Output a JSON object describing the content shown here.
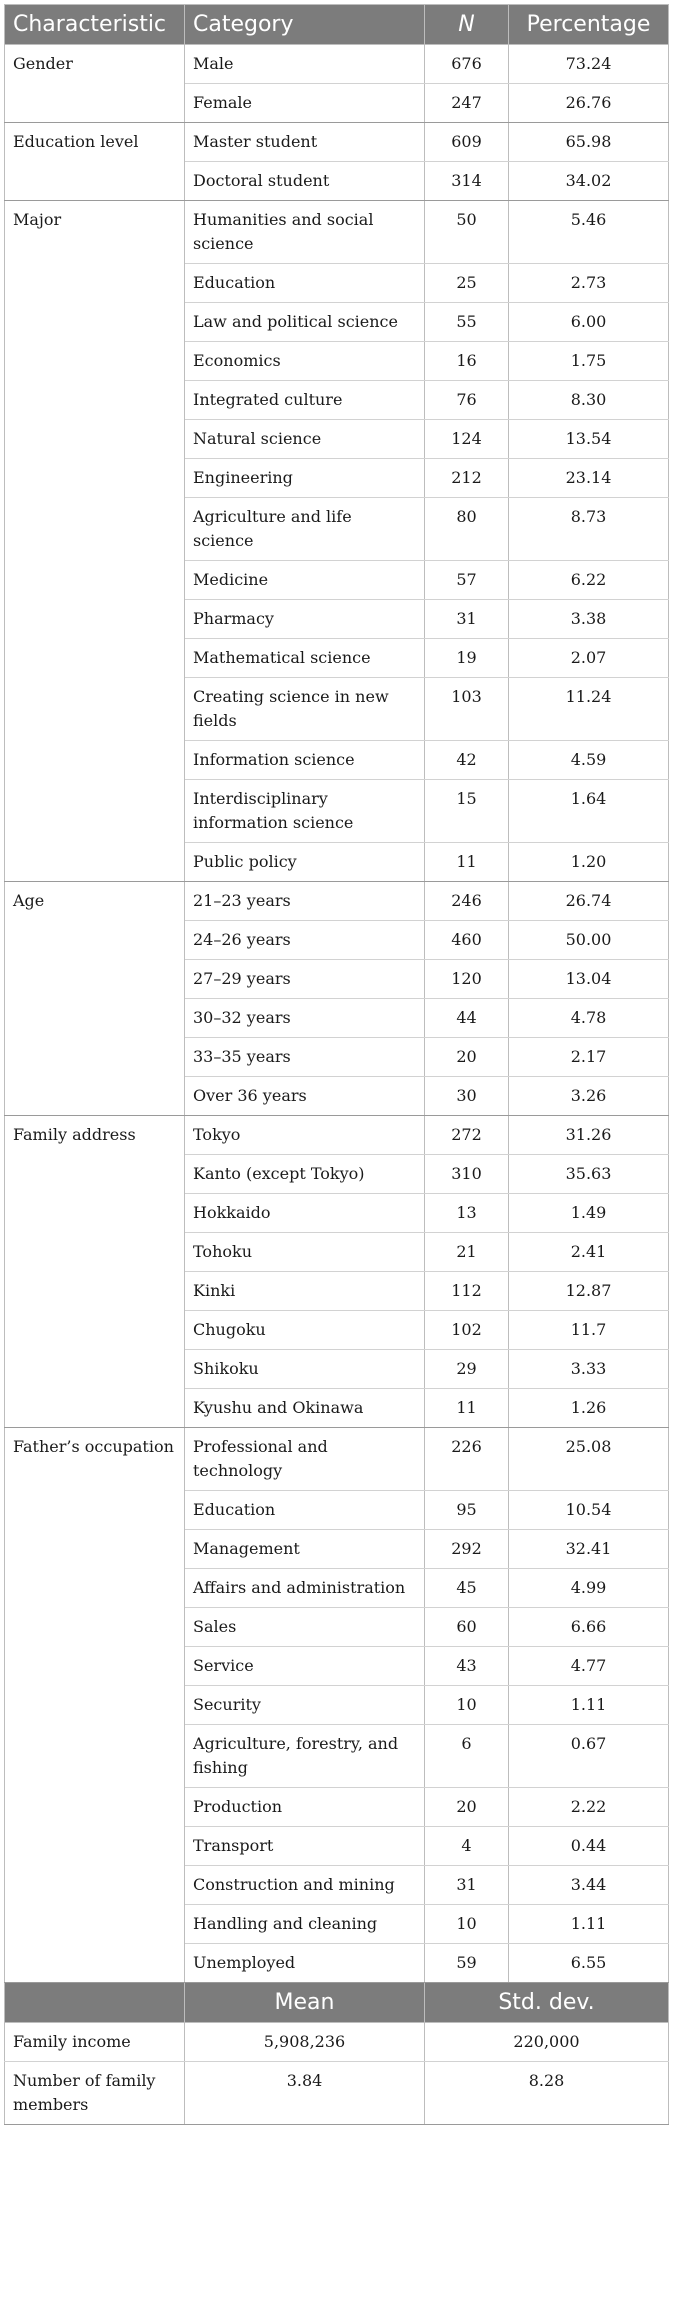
{
  "header": {
    "characteristic": "Characteristic",
    "category": "Category",
    "n": "N",
    "percentage": "Percentage"
  },
  "groups": [
    {
      "name": "Gender",
      "rows": [
        {
          "category": "Male",
          "n": "676",
          "pct": "73.24"
        },
        {
          "category": "Female",
          "n": "247",
          "pct": "26.76"
        }
      ]
    },
    {
      "name": "Education level",
      "rows": [
        {
          "category": "Master student",
          "n": "609",
          "pct": "65.98"
        },
        {
          "category": "Doctoral student",
          "n": "314",
          "pct": "34.02"
        }
      ]
    },
    {
      "name": "Major",
      "rows": [
        {
          "category": "Humanities and social science",
          "n": "50",
          "pct": "5.46"
        },
        {
          "category": "Education",
          "n": "25",
          "pct": "2.73"
        },
        {
          "category": "Law and political science",
          "n": "55",
          "pct": "6.00"
        },
        {
          "category": "Economics",
          "n": "16",
          "pct": "1.75"
        },
        {
          "category": "Integrated culture",
          "n": "76",
          "pct": "8.30"
        },
        {
          "category": "Natural science",
          "n": "124",
          "pct": "13.54"
        },
        {
          "category": "Engineering",
          "n": "212",
          "pct": "23.14"
        },
        {
          "category": "Agriculture and life science",
          "n": "80",
          "pct": "8.73"
        },
        {
          "category": "Medicine",
          "n": "57",
          "pct": "6.22"
        },
        {
          "category": "Pharmacy",
          "n": "31",
          "pct": "3.38"
        },
        {
          "category": "Mathematical science",
          "n": "19",
          "pct": "2.07"
        },
        {
          "category": "Creating science in new fields",
          "n": "103",
          "pct": "11.24"
        },
        {
          "category": "Information science",
          "n": "42",
          "pct": "4.59"
        },
        {
          "category": "Interdisciplinary information science",
          "n": "15",
          "pct": "1.64"
        },
        {
          "category": "Public policy",
          "n": "11",
          "pct": "1.20"
        }
      ]
    },
    {
      "name": "Age",
      "rows": [
        {
          "category": "21–23 years",
          "n": "246",
          "pct": "26.74"
        },
        {
          "category": "24–26 years",
          "n": "460",
          "pct": "50.00"
        },
        {
          "category": "27–29 years",
          "n": "120",
          "pct": "13.04"
        },
        {
          "category": "30–32 years",
          "n": "44",
          "pct": "4.78"
        },
        {
          "category": "33–35 years",
          "n": "20",
          "pct": "2.17"
        },
        {
          "category": "Over 36 years",
          "n": "30",
          "pct": "3.26"
        }
      ]
    },
    {
      "name": "Family address",
      "rows": [
        {
          "category": "Tokyo",
          "n": "272",
          "pct": "31.26"
        },
        {
          "category": "Kanto (except Tokyo)",
          "n": "310",
          "pct": "35.63"
        },
        {
          "category": "Hokkaido",
          "n": "13",
          "pct": "1.49"
        },
        {
          "category": "Tohoku",
          "n": "21",
          "pct": "2.41"
        },
        {
          "category": "Kinki",
          "n": "112",
          "pct": "12.87"
        },
        {
          "category": "Chugoku",
          "n": "102",
          "pct": "11.7"
        },
        {
          "category": "Shikoku",
          "n": "29",
          "pct": "3.33"
        },
        {
          "category": "Kyushu and Okinawa",
          "n": "11",
          "pct": "1.26"
        }
      ]
    },
    {
      "name": "Father’s occupation",
      "rows": [
        {
          "category": "Professional and technology",
          "n": "226",
          "pct": "25.08"
        },
        {
          "category": "Education",
          "n": "95",
          "pct": "10.54"
        },
        {
          "category": "Management",
          "n": "292",
          "pct": "32.41"
        },
        {
          "category": "Affairs and administration",
          "n": "45",
          "pct": "4.99"
        },
        {
          "category": "Sales",
          "n": "60",
          "pct": "6.66"
        },
        {
          "category": "Service",
          "n": "43",
          "pct": "4.77"
        },
        {
          "category": "Security",
          "n": "10",
          "pct": "1.11"
        },
        {
          "category": "Agriculture, forestry, and fishing",
          "n": "6",
          "pct": "0.67"
        },
        {
          "category": "Production",
          "n": "20",
          "pct": "2.22"
        },
        {
          "category": "Transport",
          "n": "4",
          "pct": "0.44"
        },
        {
          "category": "Construction and mining",
          "n": "31",
          "pct": "3.44"
        },
        {
          "category": "Handling and cleaning",
          "n": "10",
          "pct": "1.11"
        },
        {
          "category": "Unemployed",
          "n": "59",
          "pct": "6.55"
        }
      ]
    }
  ],
  "summary_header": {
    "mean": "Mean",
    "sd": "Std. dev."
  },
  "summary": [
    {
      "name": "Family income",
      "mean": "5,908,236",
      "sd": "220,000"
    },
    {
      "name": "Number of family members",
      "mean": "3.84",
      "sd": "8.28"
    }
  ]
}
